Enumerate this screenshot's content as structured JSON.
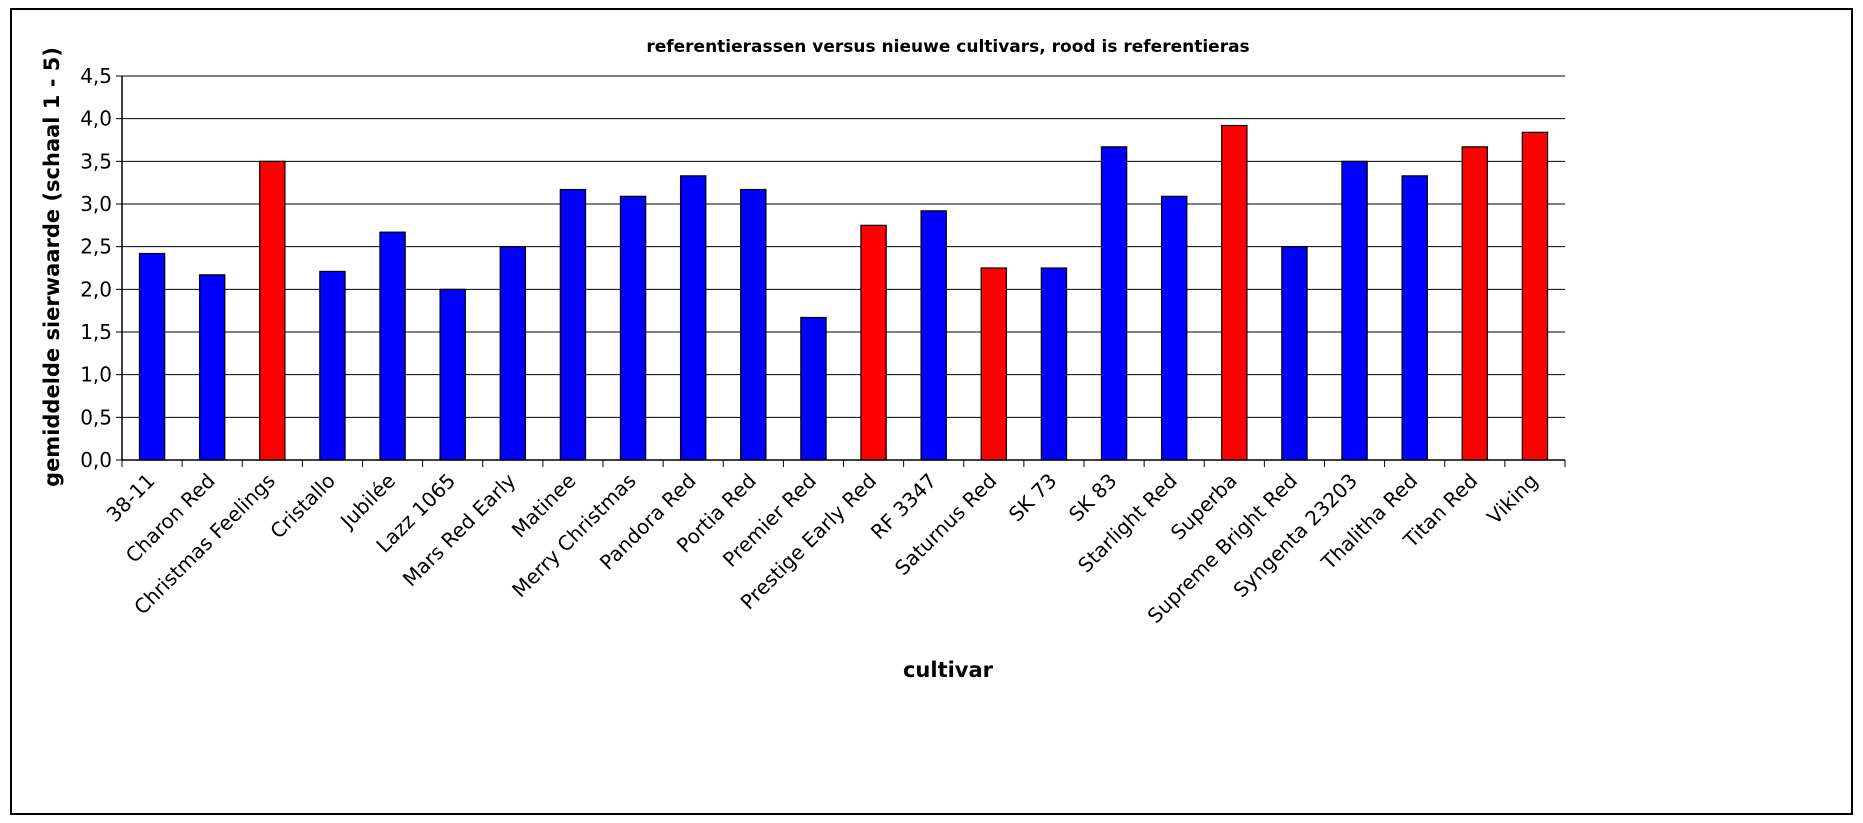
{
  "chart_data": {
    "type": "bar",
    "title": "referentierassen versus nieuwe cultivars, rood is referentieras",
    "xlabel": "cultivar",
    "ylabel": "gemiddelde sierwaarde (schaal 1 - 5)",
    "ylim": [
      0,
      4.5
    ],
    "yticks": [
      "0,0",
      "0,5",
      "1,0",
      "1,5",
      "2,0",
      "2,5",
      "3,0",
      "3,5",
      "4,0",
      "4,5"
    ],
    "grid": true,
    "legend": "none",
    "categories": [
      "38-11",
      "Charon Red",
      "Christmas Feelings",
      "Cristallo",
      "Jubilée",
      "Lazz 1065",
      "Mars Red Early",
      "Matinee",
      "Merry Christmas",
      "Pandora Red",
      "Portia Red",
      "Premier Red",
      "Prestige Early Red",
      "RF 3347",
      "Saturnus Red",
      "SK 73",
      "SK 83",
      "Starlight Red",
      "Superba",
      "Supreme Bright Red",
      "Syngenta 23203",
      "Thalitha Red",
      "Titan Red",
      "Viking"
    ],
    "values": [
      2.42,
      2.17,
      3.5,
      2.21,
      2.67,
      2.0,
      2.5,
      3.17,
      3.09,
      3.33,
      3.17,
      1.67,
      2.75,
      2.92,
      2.25,
      2.25,
      3.67,
      3.09,
      3.92,
      2.5,
      3.5,
      3.33,
      3.67,
      3.84
    ],
    "reference": [
      false,
      false,
      true,
      false,
      false,
      false,
      false,
      false,
      false,
      false,
      false,
      false,
      true,
      false,
      true,
      false,
      false,
      false,
      true,
      false,
      false,
      false,
      true,
      true
    ],
    "colors": {
      "new": "#0000ff",
      "reference": "#ff0000",
      "edge": "#000000"
    }
  }
}
